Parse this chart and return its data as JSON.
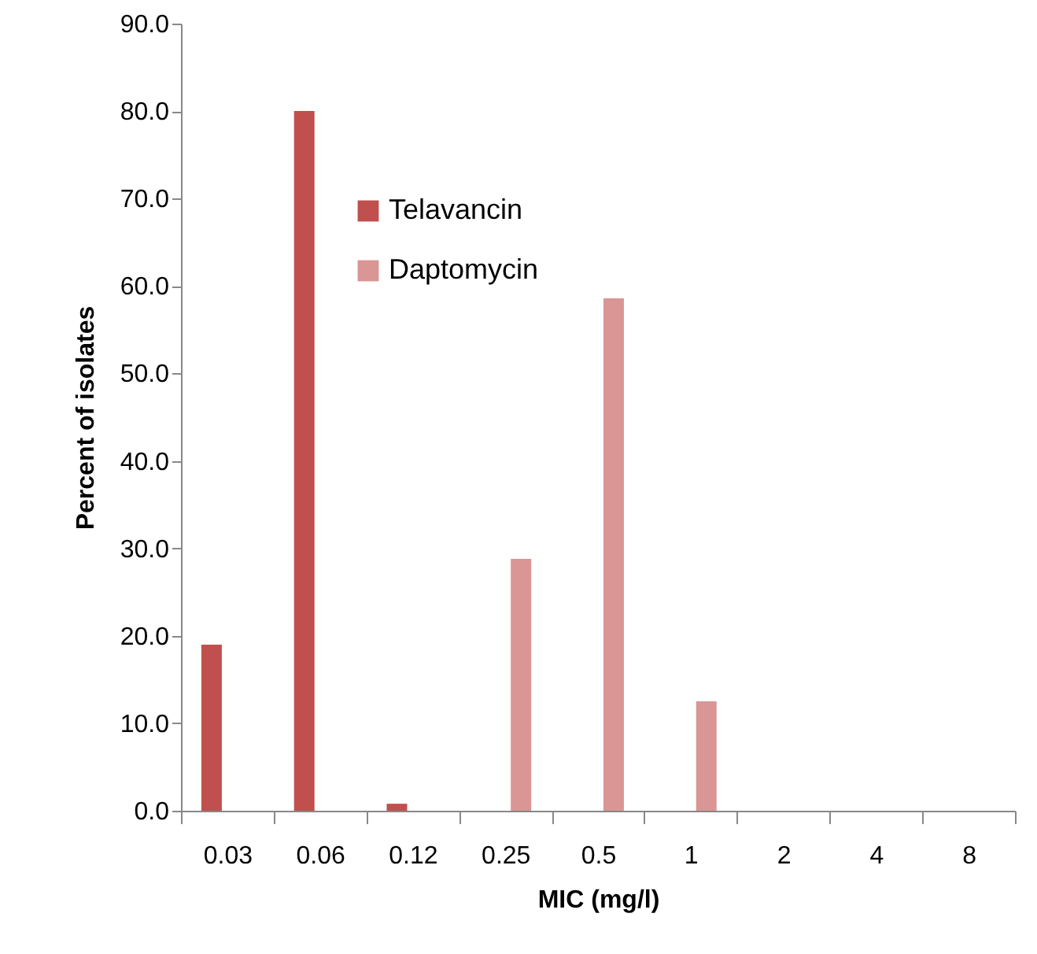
{
  "chart_data": {
    "type": "bar",
    "xlabel": "MIC (mg/l)",
    "ylabel": "Percent of isolates",
    "categories": [
      "0.03",
      "0.06",
      "0.12",
      "0.25",
      "0.5",
      "1",
      "2",
      "4",
      "8"
    ],
    "series": [
      {
        "name": "Telavancin",
        "color": "#c0504d",
        "values": [
          19.0,
          80.0,
          0.8,
          0,
          0,
          0,
          0,
          0,
          0
        ]
      },
      {
        "name": "Daptomycin",
        "color": "#d99694",
        "values": [
          0,
          0,
          0,
          28.8,
          58.6,
          12.5,
          0,
          0,
          0
        ]
      }
    ],
    "ylim": [
      0,
      90
    ],
    "yticks": [
      {
        "value": 0,
        "label": "0.0"
      },
      {
        "value": 10,
        "label": "10.0"
      },
      {
        "value": 20,
        "label": "20.0"
      },
      {
        "value": 30,
        "label": "30.0"
      },
      {
        "value": 40,
        "label": "40.0"
      },
      {
        "value": 50,
        "label": "50.0"
      },
      {
        "value": 60,
        "label": "60.0"
      },
      {
        "value": 70,
        "label": "70.0"
      },
      {
        "value": 80,
        "label": "80.0"
      },
      {
        "value": 90,
        "label": "90.0"
      }
    ],
    "grid": false,
    "legend": "top left"
  }
}
